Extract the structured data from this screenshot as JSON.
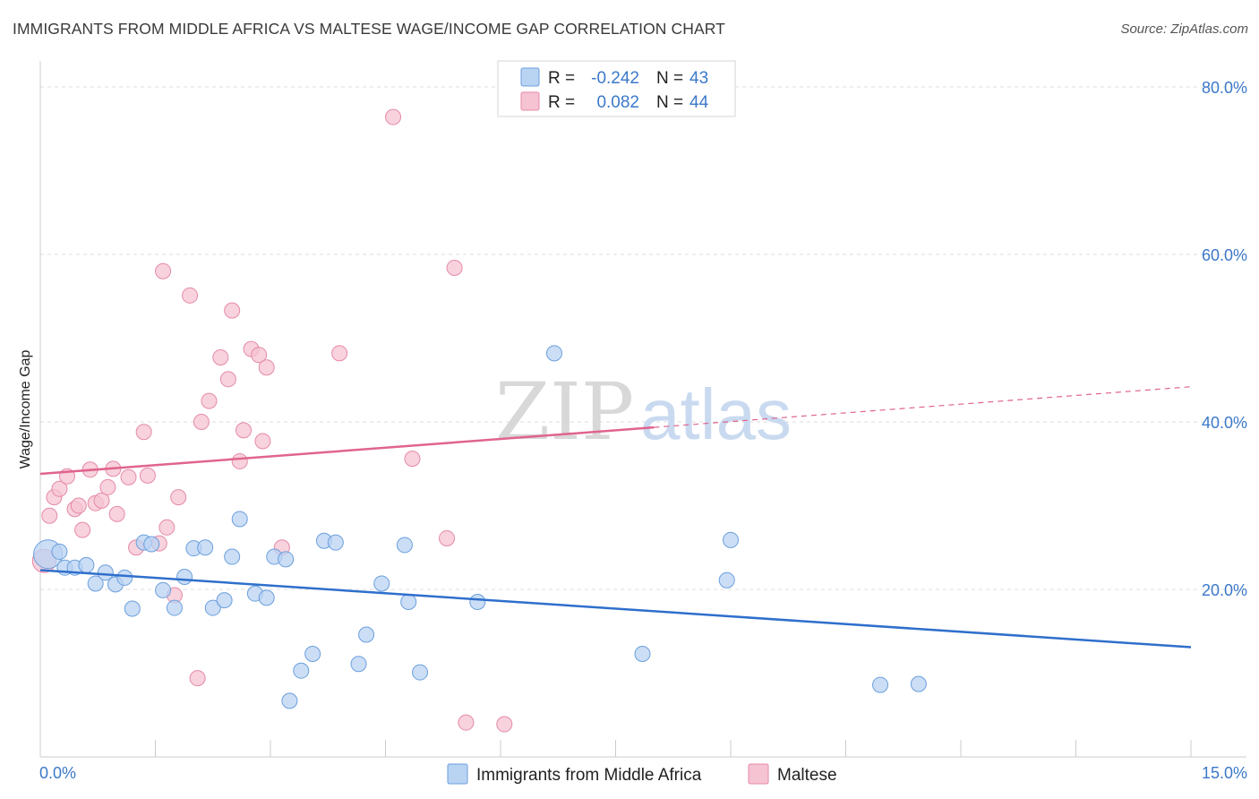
{
  "header": {
    "title": "IMMIGRANTS FROM MIDDLE AFRICA VS MALTESE WAGE/INCOME GAP CORRELATION CHART",
    "source": "Source: ZipAtlas.com"
  },
  "watermark": {
    "zip": "ZIP",
    "atlas": "atlas"
  },
  "stats_legend": {
    "series1": {
      "r_label": "R =",
      "r_value": "-0.242",
      "n_label": "N =",
      "n_value": "43"
    },
    "series2": {
      "r_label": "R =",
      "r_value": "0.082",
      "n_label": "N =",
      "n_value": "44"
    }
  },
  "colors": {
    "blue_fill": "#b9d3f3",
    "blue_stroke": "#6b9fdc",
    "blue_line": "#2f6fcc",
    "pink_fill": "#f6c3d2",
    "pink_stroke": "#e58aa8",
    "pink_line": "#e0648e",
    "tick": "#3b78c9",
    "grid": "#dddddd"
  },
  "chart_data": {
    "type": "scatter",
    "title": "IMMIGRANTS FROM MIDDLE AFRICA VS MALTESE WAGE/INCOME GAP CORRELATION CHART",
    "xlabel": "",
    "ylabel": "Wage/Income Gap",
    "xlim": [
      0,
      15
    ],
    "ylim": [
      0,
      80
    ],
    "x_tick_labels": [
      "0.0%",
      "15.0%"
    ],
    "y_ticks": [
      20,
      40,
      60,
      80
    ],
    "y_tick_labels": [
      "20.0%",
      "40.0%",
      "60.0%",
      "80.0%"
    ],
    "grid": true,
    "series": [
      {
        "name": "Immigrants from Middle Africa",
        "color": "#6b9fdc",
        "R": -0.242,
        "N": 43,
        "trend": {
          "x": [
            0,
            15
          ],
          "y": [
            22.3,
            13.1
          ],
          "dashed_from": null
        },
        "points": [
          [
            0.1,
            24.2,
            16
          ],
          [
            0.25,
            24.5,
            8
          ],
          [
            0.32,
            22.6,
            8
          ],
          [
            0.45,
            22.6,
            8
          ],
          [
            0.6,
            22.9,
            8
          ],
          [
            0.72,
            20.7,
            8
          ],
          [
            0.85,
            22.0,
            8
          ],
          [
            0.98,
            20.6,
            8
          ],
          [
            1.1,
            21.4,
            8
          ],
          [
            1.2,
            17.7,
            8
          ],
          [
            1.35,
            25.6,
            8
          ],
          [
            1.45,
            25.4,
            8
          ],
          [
            1.6,
            19.9,
            8
          ],
          [
            1.75,
            17.8,
            8
          ],
          [
            1.88,
            21.5,
            8
          ],
          [
            2.0,
            24.9,
            8
          ],
          [
            2.15,
            25.0,
            8
          ],
          [
            2.25,
            17.8,
            8
          ],
          [
            2.4,
            18.7,
            8
          ],
          [
            2.5,
            23.9,
            8
          ],
          [
            2.6,
            28.4,
            8
          ],
          [
            2.8,
            19.5,
            8
          ],
          [
            2.95,
            19.0,
            8
          ],
          [
            3.05,
            23.9,
            8
          ],
          [
            3.2,
            23.6,
            8
          ],
          [
            3.25,
            6.7,
            8
          ],
          [
            3.4,
            10.3,
            8
          ],
          [
            3.55,
            12.3,
            8
          ],
          [
            3.7,
            25.8,
            8
          ],
          [
            3.85,
            25.6,
            8
          ],
          [
            4.15,
            11.1,
            8
          ],
          [
            4.25,
            14.6,
            8
          ],
          [
            4.45,
            20.7,
            8
          ],
          [
            4.75,
            25.3,
            8
          ],
          [
            4.8,
            18.5,
            8
          ],
          [
            4.95,
            10.1,
            8
          ],
          [
            5.7,
            18.5,
            8
          ],
          [
            6.7,
            48.2,
            8
          ],
          [
            7.85,
            12.3,
            8
          ],
          [
            8.95,
            21.1,
            8
          ],
          [
            9.0,
            25.9,
            8
          ],
          [
            10.95,
            8.6,
            8
          ],
          [
            11.45,
            8.7,
            8
          ]
        ]
      },
      {
        "name": "Maltese",
        "color": "#e58aa8",
        "R": 0.082,
        "N": 44,
        "trend": {
          "x": [
            0,
            15
          ],
          "y": [
            33.8,
            44.2
          ],
          "dashed_from": 8.0
        },
        "points": [
          [
            0.05,
            23.4,
            14
          ],
          [
            0.12,
            28.8,
            8
          ],
          [
            0.18,
            31.0,
            8
          ],
          [
            0.25,
            32.0,
            8
          ],
          [
            0.35,
            33.5,
            8
          ],
          [
            0.45,
            29.6,
            8
          ],
          [
            0.5,
            30.0,
            8
          ],
          [
            0.55,
            27.1,
            8
          ],
          [
            0.65,
            34.3,
            8
          ],
          [
            0.72,
            30.3,
            8
          ],
          [
            0.8,
            30.6,
            8
          ],
          [
            0.88,
            32.2,
            8
          ],
          [
            0.95,
            34.4,
            8
          ],
          [
            1.0,
            29.0,
            8
          ],
          [
            1.15,
            33.4,
            8
          ],
          [
            1.25,
            25.0,
            8
          ],
          [
            1.35,
            38.8,
            8
          ],
          [
            1.4,
            33.6,
            8
          ],
          [
            1.55,
            25.5,
            8
          ],
          [
            1.6,
            58.0,
            8
          ],
          [
            1.65,
            27.4,
            8
          ],
          [
            1.75,
            19.3,
            8
          ],
          [
            1.8,
            31.0,
            8
          ],
          [
            1.95,
            55.1,
            8
          ],
          [
            2.05,
            9.4,
            8
          ],
          [
            2.1,
            40.0,
            8
          ],
          [
            2.2,
            42.5,
            8
          ],
          [
            2.35,
            47.7,
            8
          ],
          [
            2.45,
            45.1,
            8
          ],
          [
            2.5,
            53.3,
            8
          ],
          [
            2.6,
            35.3,
            8
          ],
          [
            2.65,
            39.0,
            8
          ],
          [
            2.75,
            48.7,
            8
          ],
          [
            2.85,
            48.0,
            8
          ],
          [
            2.9,
            37.7,
            8
          ],
          [
            2.95,
            46.5,
            8
          ],
          [
            3.15,
            25.0,
            8
          ],
          [
            3.9,
            48.2,
            8
          ],
          [
            4.6,
            76.4,
            8
          ],
          [
            4.85,
            35.6,
            8
          ],
          [
            5.3,
            26.1,
            8
          ],
          [
            5.4,
            58.4,
            8
          ],
          [
            5.55,
            4.1,
            8
          ],
          [
            6.05,
            3.9,
            8
          ]
        ]
      }
    ]
  },
  "bottom_legend": {
    "item1": "Immigrants from Middle Africa",
    "item2": "Maltese"
  }
}
